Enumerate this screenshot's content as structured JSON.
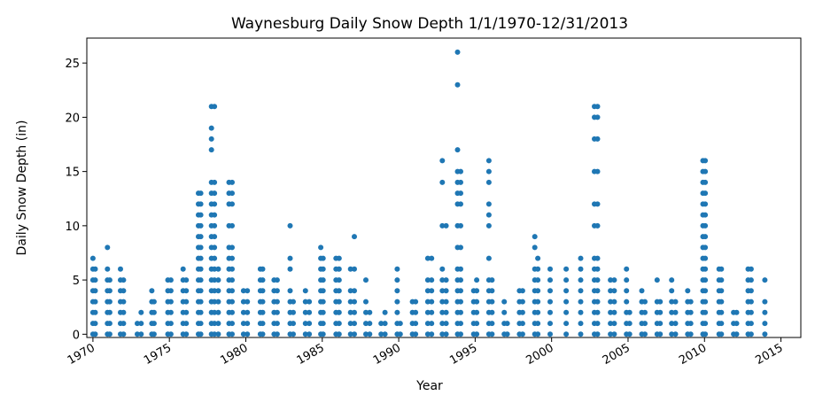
{
  "chart_data": {
    "type": "scatter",
    "title": "Waynesburg Daily Snow Depth 1/1/1970-12/31/2013",
    "xlabel": "Year",
    "ylabel": "Daily Snow Depth (in)",
    "xlim": [
      1969.6,
      2016.3
    ],
    "ylim": [
      -0.3,
      27.3
    ],
    "x_ticks": [
      1970,
      1975,
      1980,
      1985,
      1990,
      1995,
      2000,
      2005,
      2010,
      2015
    ],
    "y_ticks": [
      0,
      5,
      10,
      15,
      20,
      25
    ],
    "grid": false,
    "legend": "none",
    "marker_color": "#1f77b4",
    "series": [
      {
        "points_by_x": [
          {
            "x": 1970.0,
            "y": [
              0,
              1,
              2,
              3,
              4,
              5,
              6,
              7
            ]
          },
          {
            "x": 1970.15,
            "y": [
              0,
              1,
              2,
              3,
              4,
              5,
              6
            ]
          },
          {
            "x": 1970.95,
            "y": [
              0,
              1,
              2,
              3,
              4,
              5,
              6,
              8
            ]
          },
          {
            "x": 1971.1,
            "y": [
              0,
              1,
              2,
              3,
              4,
              5
            ]
          },
          {
            "x": 1971.8,
            "y": [
              0,
              1,
              2,
              3,
              4,
              5,
              6
            ]
          },
          {
            "x": 1972.0,
            "y": [
              0,
              1,
              2,
              3,
              4,
              5
            ]
          },
          {
            "x": 1972.9,
            "y": [
              0,
              1
            ]
          },
          {
            "x": 1973.15,
            "y": [
              0,
              1,
              2
            ]
          },
          {
            "x": 1973.85,
            "y": [
              0,
              1,
              2,
              3,
              4
            ]
          },
          {
            "x": 1974.0,
            "y": [
              0,
              1,
              2,
              3
            ]
          },
          {
            "x": 1974.9,
            "y": [
              0,
              1,
              2,
              3,
              4,
              5
            ]
          },
          {
            "x": 1975.1,
            "y": [
              0,
              1,
              2,
              3,
              4,
              5
            ]
          },
          {
            "x": 1975.9,
            "y": [
              0,
              1,
              2,
              3,
              4,
              5,
              6
            ]
          },
          {
            "x": 1976.1,
            "y": [
              0,
              1,
              2,
              3,
              4,
              5
            ]
          },
          {
            "x": 1976.9,
            "y": [
              0,
              1,
              2,
              3,
              4,
              5,
              6,
              7,
              8,
              9,
              10,
              11,
              12,
              13
            ]
          },
          {
            "x": 1977.05,
            "y": [
              0,
              1,
              2,
              3,
              4,
              5,
              6,
              7,
              8,
              9,
              10,
              11,
              12,
              13
            ]
          },
          {
            "x": 1977.75,
            "y": [
              0,
              1,
              2,
              3,
              4,
              5,
              6,
              7,
              8,
              9,
              10,
              11,
              12,
              13,
              14,
              17,
              18,
              19,
              21
            ]
          },
          {
            "x": 1977.95,
            "y": [
              0,
              1,
              2,
              3,
              4,
              5,
              6,
              7,
              8,
              9,
              10,
              11,
              12,
              13,
              14,
              21
            ]
          },
          {
            "x": 1978.2,
            "y": [
              0,
              1,
              2,
              3,
              4,
              5,
              6
            ]
          },
          {
            "x": 1978.9,
            "y": [
              0,
              1,
              2,
              3,
              4,
              5,
              6,
              7,
              8,
              10,
              12,
              13,
              14
            ]
          },
          {
            "x": 1979.1,
            "y": [
              0,
              1,
              2,
              3,
              4,
              5,
              6,
              7,
              8,
              10,
              12,
              13,
              14
            ]
          },
          {
            "x": 1979.85,
            "y": [
              0,
              1,
              2,
              3,
              4
            ]
          },
          {
            "x": 1980.1,
            "y": [
              0,
              1,
              2,
              3,
              4
            ]
          },
          {
            "x": 1980.95,
            "y": [
              0,
              1,
              2,
              3,
              4,
              5,
              6
            ]
          },
          {
            "x": 1981.1,
            "y": [
              0,
              1,
              2,
              3,
              4,
              5,
              6
            ]
          },
          {
            "x": 1981.85,
            "y": [
              0,
              1,
              2,
              3,
              4,
              5
            ]
          },
          {
            "x": 1982.05,
            "y": [
              0,
              1,
              2,
              3,
              4,
              5
            ]
          },
          {
            "x": 1982.9,
            "y": [
              0,
              1,
              2,
              3,
              4,
              6,
              7,
              10
            ]
          },
          {
            "x": 1983.1,
            "y": [
              0,
              1,
              2,
              3
            ]
          },
          {
            "x": 1983.9,
            "y": [
              0,
              1,
              2,
              3,
              4
            ]
          },
          {
            "x": 1984.15,
            "y": [
              0,
              1,
              2,
              3
            ]
          },
          {
            "x": 1984.9,
            "y": [
              0,
              1,
              2,
              3,
              4,
              5,
              6,
              7,
              8
            ]
          },
          {
            "x": 1985.05,
            "y": [
              0,
              1,
              2,
              3,
              4,
              5,
              6,
              7
            ]
          },
          {
            "x": 1985.9,
            "y": [
              0,
              1,
              2,
              3,
              4,
              5,
              6,
              7
            ]
          },
          {
            "x": 1986.1,
            "y": [
              0,
              1,
              2,
              3,
              4,
              5,
              6,
              7
            ]
          },
          {
            "x": 1986.85,
            "y": [
              0,
              1,
              2,
              3,
              4,
              6
            ]
          },
          {
            "x": 1987.1,
            "y": [
              0,
              1,
              2,
              3,
              4,
              6,
              9
            ]
          },
          {
            "x": 1987.85,
            "y": [
              0,
              1,
              2,
              3,
              5
            ]
          },
          {
            "x": 1988.1,
            "y": [
              0,
              1,
              2
            ]
          },
          {
            "x": 1988.85,
            "y": [
              0,
              1
            ]
          },
          {
            "x": 1989.1,
            "y": [
              0,
              1,
              2
            ]
          },
          {
            "x": 1989.9,
            "y": [
              0,
              1,
              2,
              3,
              4,
              5,
              6
            ]
          },
          {
            "x": 1990.1,
            "y": [
              0,
              1
            ]
          },
          {
            "x": 1990.9,
            "y": [
              0,
              1,
              2,
              3
            ]
          },
          {
            "x": 1991.1,
            "y": [
              0,
              1,
              2,
              3
            ]
          },
          {
            "x": 1991.9,
            "y": [
              0,
              1,
              2,
              3,
              4,
              5,
              7
            ]
          },
          {
            "x": 1992.15,
            "y": [
              0,
              1,
              2,
              3,
              4,
              5,
              7
            ]
          },
          {
            "x": 1992.85,
            "y": [
              0,
              1,
              2,
              3,
              4,
              5,
              6,
              10,
              14,
              16
            ]
          },
          {
            "x": 1993.1,
            "y": [
              0,
              1,
              2,
              3,
              4,
              5,
              10
            ]
          },
          {
            "x": 1993.85,
            "y": [
              0,
              1,
              2,
              3,
              4,
              5,
              6,
              8,
              10,
              12,
              13,
              14,
              15,
              17,
              23,
              26
            ]
          },
          {
            "x": 1994.05,
            "y": [
              0,
              1,
              2,
              3,
              4,
              5,
              6,
              8,
              10,
              12,
              13,
              14,
              15
            ]
          },
          {
            "x": 1994.9,
            "y": [
              0,
              1,
              2,
              3,
              4
            ]
          },
          {
            "x": 1995.1,
            "y": [
              0,
              1,
              2,
              3,
              4,
              5
            ]
          },
          {
            "x": 1995.9,
            "y": [
              0,
              1,
              2,
              3,
              4,
              5,
              7,
              10,
              11,
              12,
              14,
              15,
              16
            ]
          },
          {
            "x": 1996.1,
            "y": [
              0,
              1,
              2,
              3,
              4,
              5
            ]
          },
          {
            "x": 1996.9,
            "y": [
              0,
              1,
              2,
              3
            ]
          },
          {
            "x": 1997.1,
            "y": [
              0,
              1
            ]
          },
          {
            "x": 1997.9,
            "y": [
              0,
              1,
              2,
              3,
              4
            ]
          },
          {
            "x": 1998.1,
            "y": [
              0,
              1,
              2,
              3,
              4
            ]
          },
          {
            "x": 1998.9,
            "y": [
              0,
              1,
              2,
              3,
              4,
              5,
              6,
              8,
              9
            ]
          },
          {
            "x": 1999.1,
            "y": [
              0,
              1,
              2,
              3,
              4,
              5,
              6,
              7
            ]
          },
          {
            "x": 1999.9,
            "y": [
              0,
              1,
              2,
              3,
              4,
              5,
              6
            ]
          },
          {
            "x": 2000.95,
            "y": [
              0,
              1,
              2,
              3,
              4,
              5,
              6
            ]
          },
          {
            "x": 2001.9,
            "y": [
              0,
              1,
              2,
              3,
              4,
              5,
              6,
              7
            ]
          },
          {
            "x": 2002.8,
            "y": [
              0,
              1,
              2,
              3,
              4,
              5,
              6,
              7,
              10,
              12,
              15,
              18,
              20,
              21
            ]
          },
          {
            "x": 2003.0,
            "y": [
              0,
              1,
              2,
              3,
              4,
              5,
              6,
              7,
              10,
              12,
              15,
              18,
              20,
              21
            ]
          },
          {
            "x": 2003.85,
            "y": [
              0,
              1,
              2,
              3,
              4,
              5
            ]
          },
          {
            "x": 2004.1,
            "y": [
              0,
              1,
              2,
              3,
              4,
              5
            ]
          },
          {
            "x": 2004.9,
            "y": [
              0,
              1,
              2,
              3,
              4,
              5,
              6
            ]
          },
          {
            "x": 2005.1,
            "y": [
              0,
              1,
              2
            ]
          },
          {
            "x": 2005.9,
            "y": [
              0,
              1,
              2,
              3,
              4
            ]
          },
          {
            "x": 2006.1,
            "y": [
              0,
              1,
              2,
              3
            ]
          },
          {
            "x": 2006.9,
            "y": [
              0,
              1,
              2,
              3,
              5
            ]
          },
          {
            "x": 2007.1,
            "y": [
              0,
              1,
              2,
              3
            ]
          },
          {
            "x": 2007.85,
            "y": [
              0,
              1,
              2,
              3,
              4,
              5
            ]
          },
          {
            "x": 2008.1,
            "y": [
              0,
              1,
              2,
              3
            ]
          },
          {
            "x": 2008.9,
            "y": [
              0,
              1,
              2,
              3,
              4
            ]
          },
          {
            "x": 2009.1,
            "y": [
              0,
              1,
              2,
              3
            ]
          },
          {
            "x": 2009.9,
            "y": [
              0,
              1,
              2,
              3,
              4,
              5,
              6,
              7,
              8,
              9,
              10,
              11,
              12,
              13,
              14,
              15,
              16
            ]
          },
          {
            "x": 2010.05,
            "y": [
              0,
              1,
              2,
              3,
              4,
              5,
              6,
              7,
              8,
              9,
              10,
              11,
              12,
              13,
              14,
              15,
              16
            ]
          },
          {
            "x": 2010.95,
            "y": [
              0,
              1,
              2,
              3,
              4,
              5,
              6
            ]
          },
          {
            "x": 2011.1,
            "y": [
              0,
              1,
              2,
              3,
              4,
              5,
              6
            ]
          },
          {
            "x": 2011.9,
            "y": [
              0,
              1,
              2
            ]
          },
          {
            "x": 2012.1,
            "y": [
              0,
              1,
              2
            ]
          },
          {
            "x": 2012.85,
            "y": [
              0,
              1,
              2,
              3,
              4,
              5,
              6
            ]
          },
          {
            "x": 2013.05,
            "y": [
              0,
              1,
              2,
              3,
              4,
              5,
              6
            ]
          },
          {
            "x": 2013.95,
            "y": [
              0,
              1,
              2,
              3,
              5
            ]
          }
        ]
      }
    ]
  }
}
